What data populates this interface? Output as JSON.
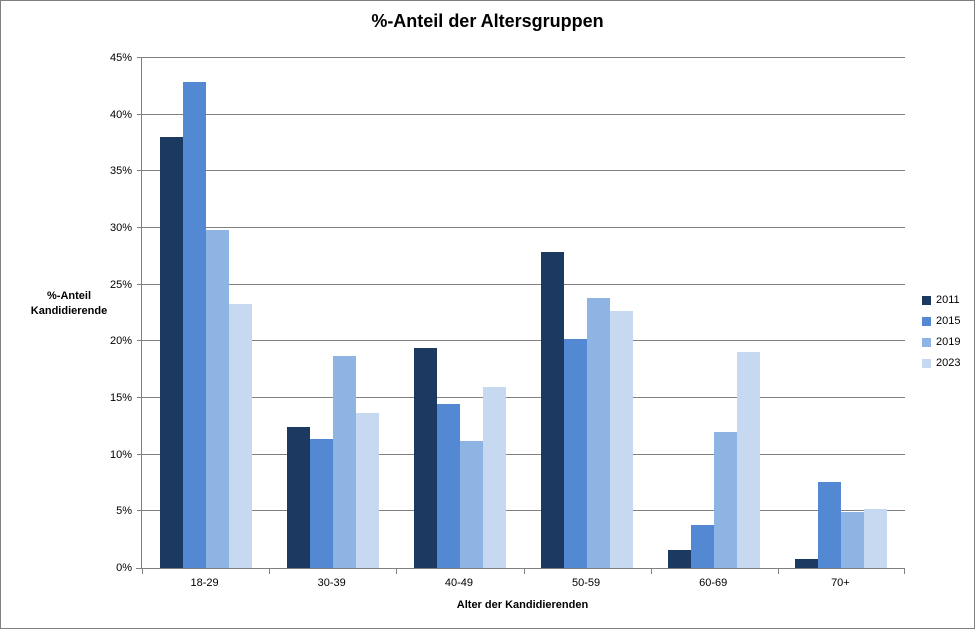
{
  "title": "%-Anteil der Altersgruppen",
  "y_axis": {
    "title_line1": "%-Anteil",
    "title_line2": "Kandidierende",
    "ticks": [
      "0%",
      "5%",
      "10%",
      "15%",
      "20%",
      "25%",
      "30%",
      "35%",
      "40%",
      "45%"
    ]
  },
  "x_axis": {
    "title": "Alter der Kandidierenden"
  },
  "legend": {
    "entries": [
      "2011",
      "2015",
      "2019",
      "2023"
    ]
  },
  "colors": {
    "grid": "#808080",
    "axis": "#808080",
    "border": "#808080",
    "text": "#000000",
    "background": "#ffffff"
  },
  "chart_data": {
    "type": "bar",
    "title": "%-Anteil der Altersgruppen",
    "xlabel": "Alter der Kandidierenden",
    "ylabel": "%-Anteil Kandidierende",
    "categories": [
      "18-29",
      "30-39",
      "40-49",
      "50-59",
      "60-69",
      "70+"
    ],
    "series": [
      {
        "name": "2011",
        "color": "#1C3A61",
        "values": [
          38.0,
          12.4,
          19.4,
          27.9,
          1.6,
          0.8
        ]
      },
      {
        "name": "2015",
        "color": "#5389D3",
        "values": [
          42.9,
          11.4,
          14.5,
          20.2,
          3.8,
          7.6
        ]
      },
      {
        "name": "2019",
        "color": "#8EB4E3",
        "values": [
          29.8,
          18.7,
          11.2,
          23.8,
          12.0,
          4.9
        ]
      },
      {
        "name": "2023",
        "color": "#C6D9F1",
        "values": [
          23.3,
          13.7,
          16.0,
          22.7,
          19.1,
          5.2
        ]
      }
    ],
    "ylim": [
      0,
      45
    ],
    "ytick_step": 5,
    "ytick_format": "percent",
    "grid": true,
    "legend_position": "right"
  }
}
